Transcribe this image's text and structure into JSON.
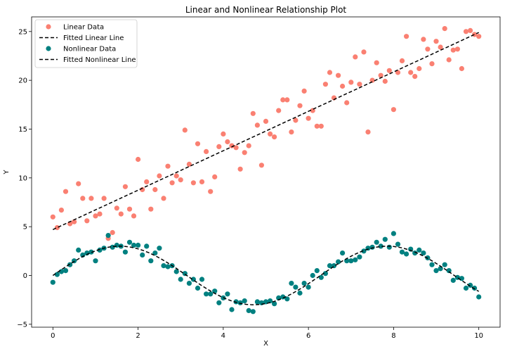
{
  "chart_data": {
    "type": "scatter",
    "title": "Linear and Nonlinear Relationship Plot",
    "xlabel": "X",
    "ylabel": "Y",
    "xlim": [
      -0.5,
      10.5
    ],
    "ylim": [
      -5.3,
      26.5
    ],
    "xticks": [
      0,
      2,
      4,
      6,
      8,
      10
    ],
    "yticks": [
      -5,
      0,
      5,
      10,
      15,
      20,
      25
    ],
    "grid": false,
    "legend_position": "top-left",
    "x": [
      0.0,
      0.1,
      0.2,
      0.3,
      0.4,
      0.5,
      0.6,
      0.7,
      0.8,
      0.9,
      1.0,
      1.1,
      1.2,
      1.3,
      1.4,
      1.5,
      1.6,
      1.7,
      1.8,
      1.9,
      2.0,
      2.1,
      2.2,
      2.3,
      2.4,
      2.5,
      2.6,
      2.7,
      2.8,
      2.9,
      3.0,
      3.1,
      3.2,
      3.3,
      3.4,
      3.5,
      3.6,
      3.7,
      3.8,
      3.9,
      4.0,
      4.1,
      4.2,
      4.3,
      4.4,
      4.5,
      4.6,
      4.7,
      4.8,
      4.9,
      5.0,
      5.1,
      5.2,
      5.3,
      5.4,
      5.5,
      5.6,
      5.7,
      5.8,
      5.9,
      6.0,
      6.1,
      6.2,
      6.3,
      6.4,
      6.5,
      6.6,
      6.7,
      6.8,
      6.9,
      7.0,
      7.1,
      7.2,
      7.3,
      7.4,
      7.5,
      7.6,
      7.7,
      7.8,
      7.9,
      8.0,
      8.1,
      8.2,
      8.3,
      8.4,
      8.5,
      8.6,
      8.7,
      8.8,
      8.9,
      9.0,
      9.1,
      9.2,
      9.3,
      9.4,
      9.5,
      9.6,
      9.7,
      9.8,
      9.9,
      10.0
    ],
    "series": [
      {
        "name": "Linear Data",
        "kind": "scatter",
        "color": "#fa8072",
        "values": [
          6.0,
          4.9,
          6.7,
          8.6,
          5.3,
          5.5,
          9.4,
          7.9,
          5.6,
          7.9,
          6.1,
          6.3,
          7.9,
          3.8,
          4.4,
          6.9,
          6.3,
          9.1,
          6.8,
          6.1,
          11.9,
          8.8,
          9.6,
          6.8,
          8.8,
          10.2,
          7.9,
          11.2,
          9.5,
          10.2,
          9.8,
          14.9,
          11.4,
          9.5,
          13.5,
          9.6,
          12.7,
          8.6,
          10.1,
          13.2,
          14.5,
          13.7,
          13.3,
          13.1,
          10.9,
          12.6,
          13.3,
          16.6,
          15.4,
          11.3,
          15.8,
          14.5,
          14.2,
          16.9,
          18.0,
          18.0,
          14.7,
          15.9,
          17.4,
          18.9,
          16.1,
          16.9,
          15.3,
          15.3,
          19.6,
          20.8,
          18.2,
          20.5,
          19.4,
          17.7,
          19.8,
          22.4,
          19.6,
          22.9,
          14.7,
          20.0,
          21.8,
          20.5,
          19.9,
          21.0,
          17.0,
          20.8,
          22.0,
          24.5,
          20.8,
          20.4,
          21.2,
          24.2,
          23.2,
          21.7,
          24.0,
          23.4,
          25.3,
          22.1,
          23.1,
          23.2,
          21.2,
          25.0,
          25.1,
          24.7,
          24.5
        ]
      },
      {
        "name": "Fitted Linear Line",
        "kind": "line",
        "color": "#000000",
        "x": [
          0,
          10
        ],
        "values": [
          4.7,
          24.9
        ]
      },
      {
        "name": "Nonlinear Data",
        "kind": "scatter",
        "color": "#008080",
        "values": [
          -0.7,
          0.1,
          0.4,
          0.5,
          1.1,
          1.5,
          2.6,
          2.1,
          2.3,
          2.4,
          1.5,
          2.6,
          2.8,
          4.1,
          2.9,
          3.1,
          3.0,
          2.4,
          3.4,
          3.1,
          3.1,
          2.1,
          3.0,
          1.5,
          2.3,
          2.8,
          1.0,
          0.9,
          1.0,
          0.4,
          -0.4,
          0.2,
          -0.8,
          -0.4,
          -1.3,
          -0.4,
          -1.9,
          -1.9,
          -1.6,
          -2.8,
          -2.3,
          -1.9,
          -3.5,
          -2.7,
          -2.8,
          -2.6,
          -3.6,
          -3.7,
          -2.7,
          -2.8,
          -2.7,
          -2.6,
          -2.9,
          -2.3,
          -2.2,
          -2.4,
          -0.8,
          -1.2,
          -1.8,
          -0.8,
          -1.2,
          0.0,
          0.5,
          -0.2,
          0.2,
          1.0,
          1.0,
          1.4,
          2.3,
          1.5,
          1.5,
          1.6,
          1.9,
          2.5,
          2.8,
          2.9,
          3.4,
          3.0,
          3.7,
          2.9,
          4.3,
          3.2,
          2.4,
          2.2,
          2.7,
          2.3,
          2.6,
          2.3,
          1.8,
          1.1,
          0.5,
          0.7,
          1.1,
          0.5,
          -0.5,
          -0.2,
          -0.3,
          -1.3,
          -1.0,
          -1.3,
          -2.2
        ]
      },
      {
        "name": "Fitted Nonlinear Line",
        "kind": "line",
        "color": "#000000",
        "function": "3*sin(x)"
      }
    ]
  }
}
